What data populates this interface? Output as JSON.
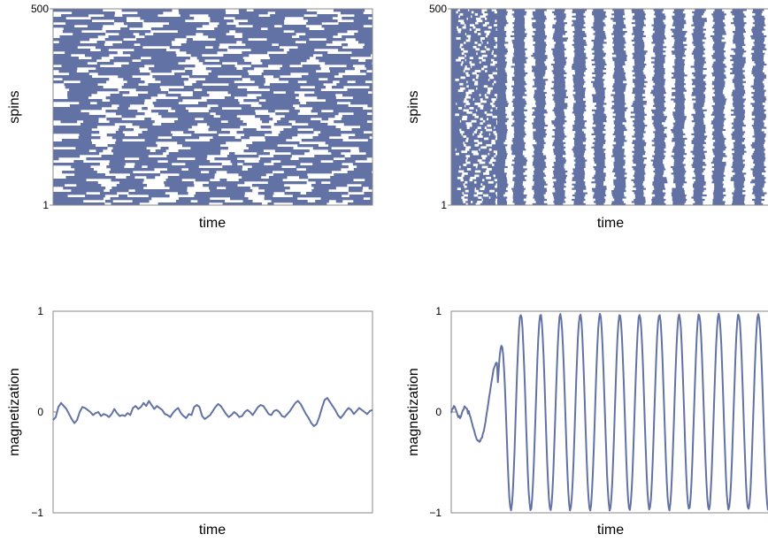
{
  "colors": {
    "series": "#6272a4",
    "frame": "#888888",
    "text": "#000000"
  },
  "chart_data": [
    {
      "type": "heatmap",
      "description_key": "spins-top-left",
      "xlabel": "time",
      "ylabel": "spins",
      "y_ticks": [
        "500",
        "1"
      ],
      "ylim": [
        1,
        500
      ],
      "pattern": "disordered",
      "seed": 7
    },
    {
      "type": "heatmap",
      "description_key": "spins-top-right",
      "xlabel": "time",
      "ylabel": "spins",
      "y_ticks": [
        "500",
        "1"
      ],
      "ylim": [
        1,
        500
      ],
      "pattern": "periodic",
      "seed": 11
    },
    {
      "type": "line",
      "xlabel": "time",
      "ylabel": "magnetization",
      "y_ticks": [
        "1",
        "0",
        "−1"
      ],
      "ylim": [
        -1,
        1
      ],
      "x": [
        0,
        1,
        2,
        3,
        4,
        5,
        6,
        7,
        8,
        9,
        10,
        11,
        12,
        13,
        14,
        15,
        16,
        17,
        18,
        19,
        20,
        21,
        22,
        23,
        24,
        25,
        26,
        27,
        28,
        29,
        30,
        31,
        32,
        33,
        34,
        35,
        36,
        37,
        38,
        39,
        40,
        41,
        42,
        43,
        44,
        45,
        46,
        47,
        48,
        49,
        50,
        51,
        52,
        53,
        54,
        55,
        56,
        57,
        58,
        59,
        60,
        61,
        62,
        63,
        64,
        65,
        66,
        67,
        68,
        69,
        70,
        71,
        72,
        73,
        74,
        75,
        76,
        77,
        78,
        79,
        80,
        81,
        82,
        83,
        84,
        85,
        86,
        87,
        88,
        89,
        90,
        91,
        92,
        93,
        94,
        95,
        96,
        97,
        98,
        99,
        100,
        101,
        102,
        103,
        104,
        105,
        106,
        107,
        108,
        109,
        110,
        111,
        112,
        113,
        114,
        115,
        116,
        117,
        118,
        119,
        120
      ],
      "values": [
        -0.08,
        -0.05,
        0.05,
        0.09,
        0.06,
        0.03,
        -0.02,
        -0.07,
        -0.11,
        -0.08,
        0.0,
        0.05,
        0.04,
        0.02,
        0.0,
        -0.03,
        -0.01,
        0.0,
        -0.04,
        -0.02,
        -0.03,
        -0.05,
        -0.02,
        0.03,
        -0.01,
        -0.04,
        -0.03,
        -0.04,
        -0.01,
        -0.03,
        0.04,
        0.06,
        0.03,
        0.05,
        0.09,
        0.06,
        0.11,
        0.07,
        0.03,
        0.06,
        0.04,
        0.02,
        -0.02,
        -0.03,
        -0.05,
        -0.01,
        0.02,
        0.04,
        -0.01,
        -0.04,
        -0.06,
        -0.02,
        -0.03,
        0.05,
        0.07,
        0.05,
        -0.04,
        -0.07,
        -0.05,
        -0.03,
        0.01,
        0.05,
        0.08,
        0.06,
        0.02,
        -0.02,
        -0.05,
        -0.03,
        0.0,
        -0.02,
        -0.05,
        -0.04,
        0.0,
        0.02,
        0.0,
        -0.03,
        0.01,
        0.05,
        0.07,
        0.06,
        0.02,
        -0.02,
        -0.03,
        0.01,
        0.02,
        0.0,
        -0.04,
        -0.05,
        -0.02,
        0.01,
        0.05,
        0.09,
        0.11,
        0.08,
        0.03,
        -0.02,
        -0.06,
        -0.11,
        -0.14,
        -0.12,
        -0.05,
        0.04,
        0.12,
        0.14,
        0.1,
        0.06,
        0.02,
        -0.03,
        -0.06,
        -0.03,
        0.01,
        0.04,
        0.02,
        -0.02,
        0.01,
        0.04,
        0.02,
        0.0,
        -0.02,
        0.01,
        0.02
      ]
    },
    {
      "type": "line",
      "xlabel": "time",
      "ylabel": "magnetization",
      "y_ticks": [
        "1",
        "0",
        "−1"
      ],
      "ylim": [
        -1,
        1
      ],
      "x_range": [
        0,
        360
      ],
      "samples": 360,
      "onset_time": 52,
      "period": 22.5,
      "max_amplitude": 0.97,
      "values_note_free": true
    }
  ]
}
